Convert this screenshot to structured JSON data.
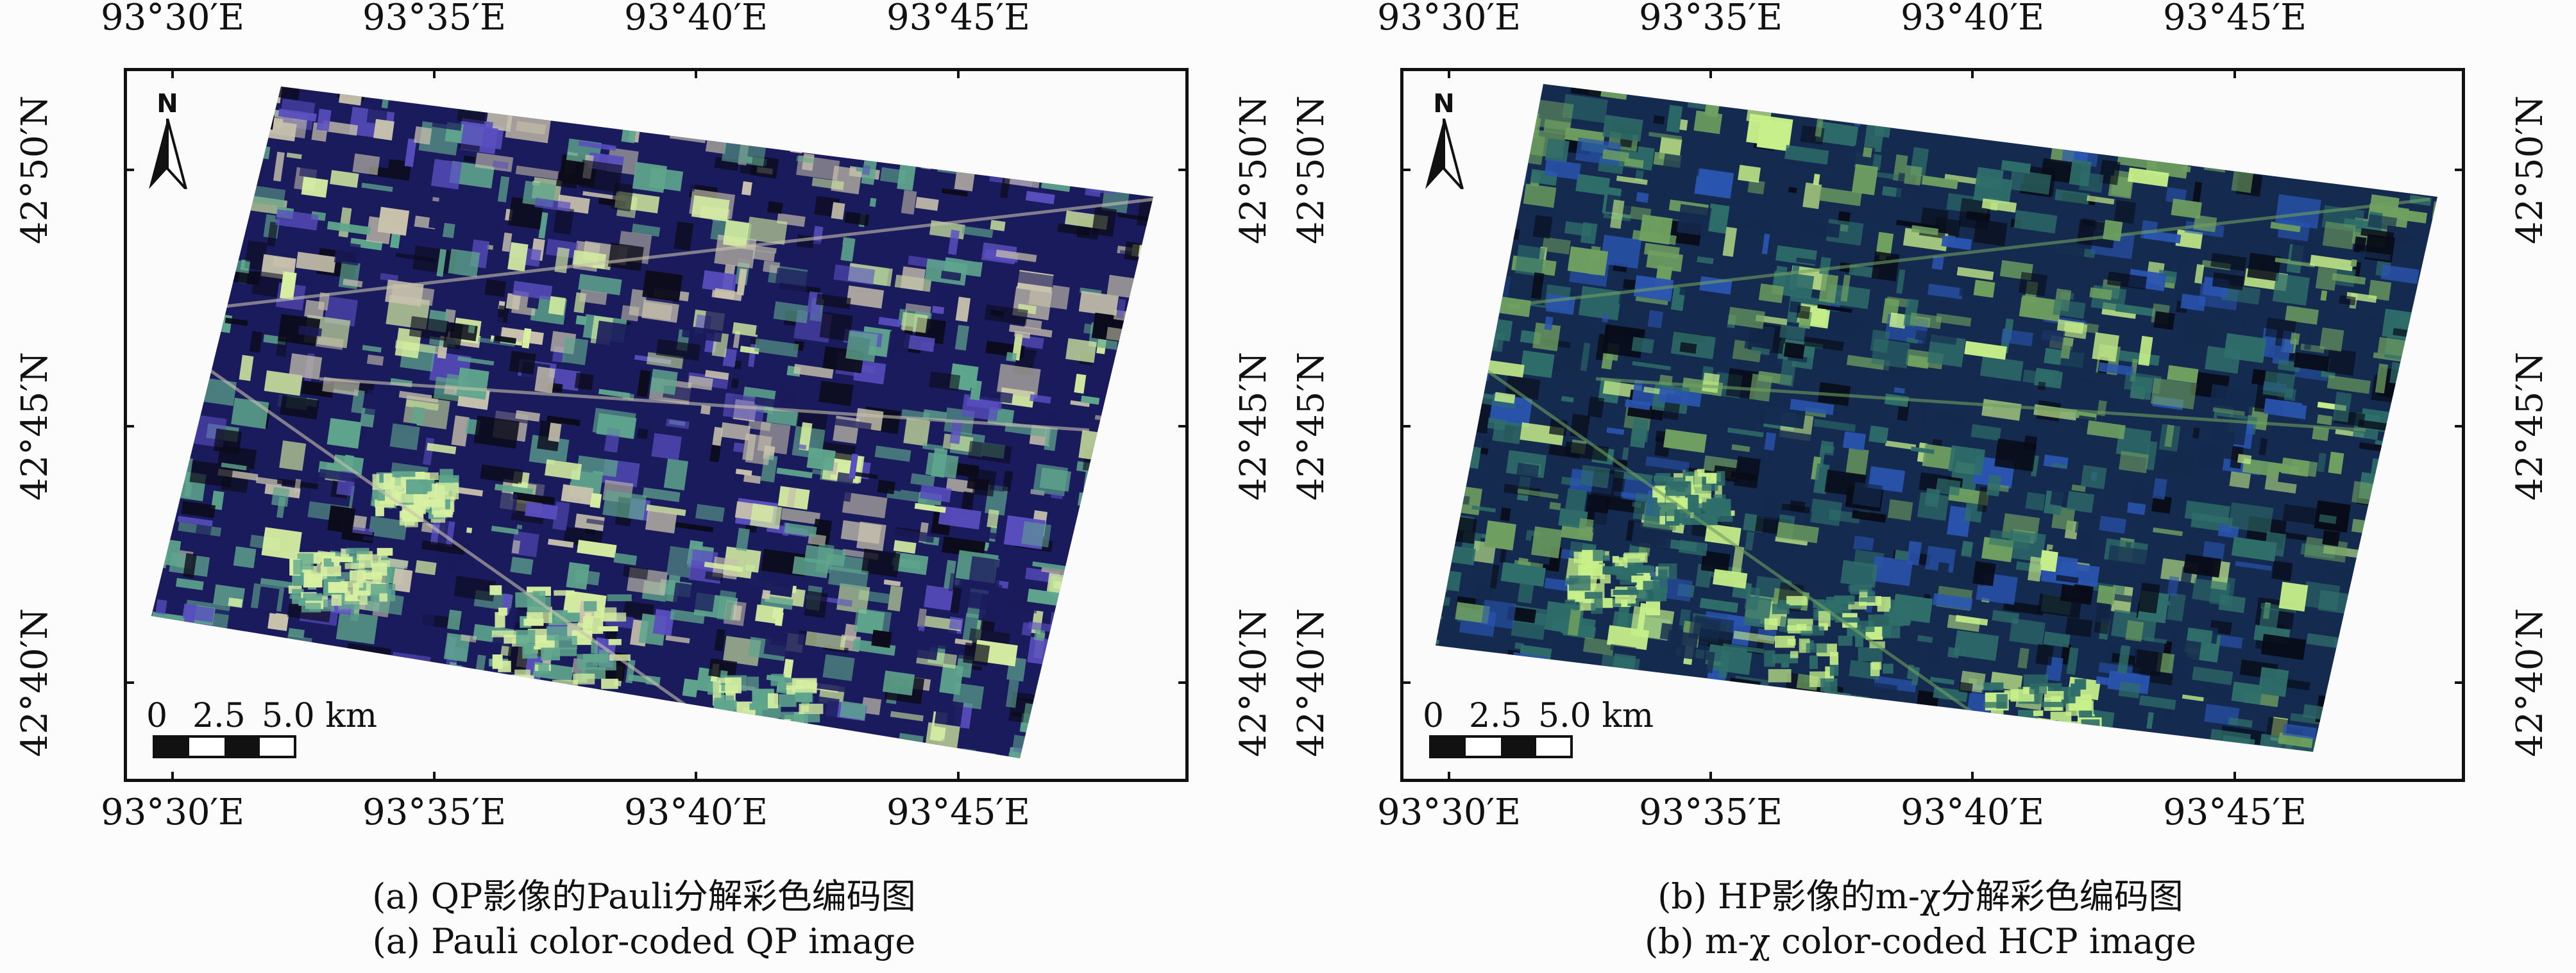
{
  "panels": [
    {
      "id": "a",
      "lon_labels": [
        "93°30′E",
        "93°35′E",
        "93°40′E",
        "93°45′E"
      ],
      "lat_labels": [
        "42°50′N",
        "42°45′N",
        "42°40′N"
      ],
      "north": "N",
      "scale": {
        "t0": "0",
        "t1": "2.5",
        "t2": "5.0 km"
      },
      "caption_cn": "(a) QP影像的Pauli分解彩色编码图",
      "caption_en": "(a) Pauli color-coded QP image",
      "palette": {
        "bg": "#1a1b5c",
        "field": "#5fa68d",
        "urban": "#c8c2ad",
        "bright": "#d7f0a2",
        "purple": "#5a4fc0",
        "dark": "#0b0b1a"
      }
    },
    {
      "id": "b",
      "lon_labels": [
        "93°30′E",
        "93°35′E",
        "93°40′E",
        "93°45′E"
      ],
      "lat_labels": [
        "42°50′N",
        "42°45′N",
        "42°40′N"
      ],
      "north": "N",
      "scale": {
        "t0": "0",
        "t1": "2.5",
        "t2": "5.0 km"
      },
      "caption_cn": "(b) HP影像的m-χ分解彩色编码图",
      "caption_en": "(b) m-χ color-coded HCP image",
      "palette": {
        "bg": "#142a4e",
        "field": "#2f6e6a",
        "urban": "#6fa060",
        "bright": "#c8f08a",
        "purple": "#2a55b0",
        "dark": "#080c18"
      }
    }
  ]
}
